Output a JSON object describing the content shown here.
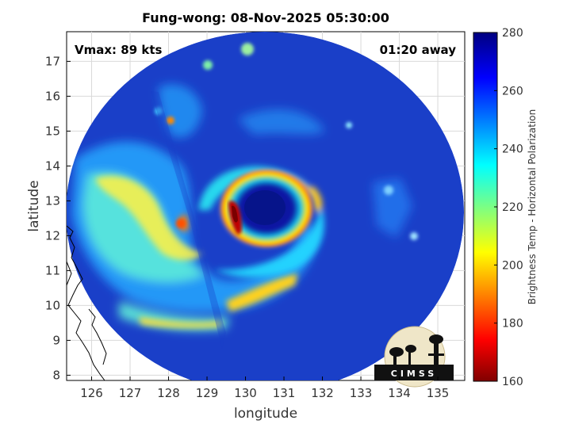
{
  "figure": {
    "title": "Fung-wong: 08-Nov-2025 05:30:00",
    "vmax_label": "Vmax: 89 kts",
    "time_label": "01:20 away",
    "logo_text": "CIMSS"
  },
  "chart_data": {
    "type": "heatmap",
    "title": "Fung-wong: 08-Nov-2025 05:30:00",
    "xlabel": "longitude",
    "ylabel": "latitude",
    "xlim": [
      125.35,
      135.7
    ],
    "ylim": [
      7.85,
      17.85
    ],
    "xticks": [
      126,
      127,
      128,
      129,
      130,
      131,
      132,
      133,
      134,
      135
    ],
    "yticks": [
      8,
      9,
      10,
      11,
      12,
      13,
      14,
      15,
      16,
      17
    ],
    "grid": true,
    "storm_center": {
      "lon": 130.4,
      "lat": 12.9
    },
    "colorbar": {
      "label": "Brightness Temp - Horizontal Polarization",
      "min": 160,
      "max": 280,
      "ticks": [
        160,
        180,
        200,
        220,
        240,
        260,
        280
      ],
      "colormap": "jet"
    }
  },
  "colors": {
    "background": "#ffffff",
    "ocean": "#1a3fc8",
    "coastline": "#000000",
    "gridline": "#d9d9d9"
  }
}
